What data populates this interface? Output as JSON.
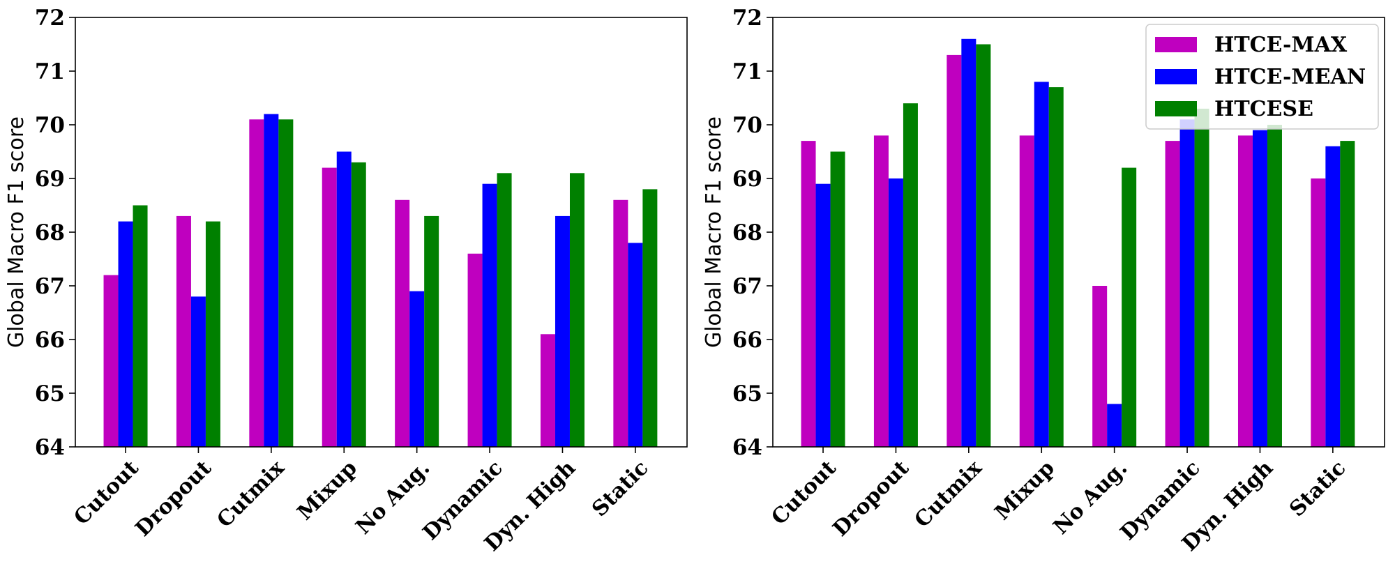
{
  "colors": {
    "HTCE-MAX": "#bf00bf",
    "HTCE-MEAN": "#0000ff",
    "HTCESE": "#008000"
  },
  "legend": {
    "placement": "top-right (right panel)",
    "entries": [
      "HTCE-MAX",
      "HTCE-MEAN",
      "HTCESE"
    ]
  },
  "chart_data": [
    {
      "type": "bar",
      "title": "",
      "xlabel": "",
      "ylabel": "Global Macro F1 score",
      "ylim": [
        64,
        72
      ],
      "yticks": [
        64,
        65,
        66,
        67,
        68,
        69,
        70,
        71,
        72
      ],
      "grid": false,
      "categories": [
        "Cutout",
        "Dropout",
        "Cutmix",
        "Mixup",
        "No Aug.",
        "Dynamic",
        "Dyn. High",
        "Static"
      ],
      "series": [
        {
          "name": "HTCE-MAX",
          "values": [
            67.2,
            68.3,
            70.1,
            69.2,
            68.6,
            67.6,
            66.1,
            68.6
          ]
        },
        {
          "name": "HTCE-MEAN",
          "values": [
            68.2,
            66.8,
            70.2,
            69.5,
            66.9,
            68.9,
            68.3,
            67.8
          ]
        },
        {
          "name": "HTCESE",
          "values": [
            68.5,
            68.2,
            70.1,
            69.3,
            68.3,
            69.1,
            69.1,
            68.8
          ]
        }
      ]
    },
    {
      "type": "bar",
      "title": "",
      "xlabel": "",
      "ylabel": "Global Macro F1 score",
      "ylim": [
        64,
        72
      ],
      "yticks": [
        64,
        65,
        66,
        67,
        68,
        69,
        70,
        71,
        72
      ],
      "grid": false,
      "categories": [
        "Cutout",
        "Dropout",
        "Cutmix",
        "Mixup",
        "No Aug.",
        "Dynamic",
        "Dyn. High",
        "Static"
      ],
      "series": [
        {
          "name": "HTCE-MAX",
          "values": [
            69.7,
            69.8,
            71.3,
            69.8,
            67.0,
            69.7,
            69.8,
            69.0
          ]
        },
        {
          "name": "HTCE-MEAN",
          "values": [
            68.9,
            69.0,
            71.6,
            70.8,
            64.8,
            70.1,
            69.9,
            69.6
          ]
        },
        {
          "name": "HTCESE",
          "values": [
            69.5,
            70.4,
            71.5,
            70.7,
            69.2,
            70.3,
            70.0,
            69.7
          ]
        }
      ]
    }
  ]
}
